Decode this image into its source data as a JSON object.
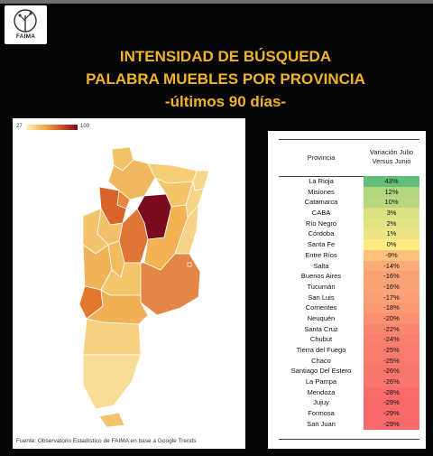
{
  "logo": {
    "text": "FAIMA"
  },
  "title": {
    "line1": "INTENSIDAD DE BÚSQUEDA",
    "line2": "PALABRA MUEBLES POR PROVINCIA",
    "line3": "-últimos 90 días-"
  },
  "map": {
    "legend_min": "27",
    "legend_max": "100",
    "source": "Fuente: Observatorio Estadístico de FAIMA en base a Google Trends"
  },
  "colors": {
    "title": "#f0b429",
    "scale_low": "#fdf3c2",
    "scale_high": "#7a0a1e",
    "positive_high": "#63be7b",
    "neutral": "#ffeb84",
    "negative_high": "#f8696b"
  },
  "chart_data": {
    "type": "table",
    "columns": [
      "Provincia",
      "Variación Julio Versus Junio"
    ],
    "rows": [
      {
        "provincia": "La Rioja",
        "label": "43%",
        "value": 43
      },
      {
        "provincia": "Misiones",
        "label": "12%",
        "value": 12
      },
      {
        "provincia": "Catamarca",
        "label": "10%",
        "value": 10
      },
      {
        "provincia": "CABA",
        "label": "3%",
        "value": 3
      },
      {
        "provincia": "Río Negro",
        "label": "2%",
        "value": 2
      },
      {
        "provincia": "Córdoba",
        "label": "1%",
        "value": 1
      },
      {
        "provincia": "Santa Fe",
        "label": "0%",
        "value": 0
      },
      {
        "provincia": "Entre Ríos",
        "label": "-9%",
        "value": -9
      },
      {
        "provincia": "Salta",
        "label": "-14%",
        "value": -14
      },
      {
        "provincia": "Buenos Aires",
        "label": "-16%",
        "value": -16
      },
      {
        "provincia": "Tucumán",
        "label": "-16%",
        "value": -16
      },
      {
        "provincia": "San Luis",
        "label": "-17%",
        "value": -17
      },
      {
        "provincia": "Corrientes",
        "label": "-18%",
        "value": -18
      },
      {
        "provincia": "Neuquén",
        "label": "-20%",
        "value": -20
      },
      {
        "provincia": "Santa Cruz",
        "label": "-22%",
        "value": -22
      },
      {
        "provincia": "Chubut",
        "label": "-24%",
        "value": -24
      },
      {
        "provincia": "Tierra del Fuego",
        "label": "-25%",
        "value": -25
      },
      {
        "provincia": "Chaco",
        "label": "-25%",
        "value": -25
      },
      {
        "provincia": "Santiago Del Estero",
        "label": "-26%",
        "value": -26
      },
      {
        "provincia": "La Pampa",
        "label": "-26%",
        "value": -26
      },
      {
        "provincia": "Mendoza",
        "label": "-28%",
        "value": -28
      },
      {
        "provincia": "Jujuy",
        "label": "-29%",
        "value": -29
      },
      {
        "provincia": "Formosa",
        "label": "-29%",
        "value": -29
      },
      {
        "provincia": "San Juan",
        "label": "-29%",
        "value": -29
      }
    ]
  }
}
